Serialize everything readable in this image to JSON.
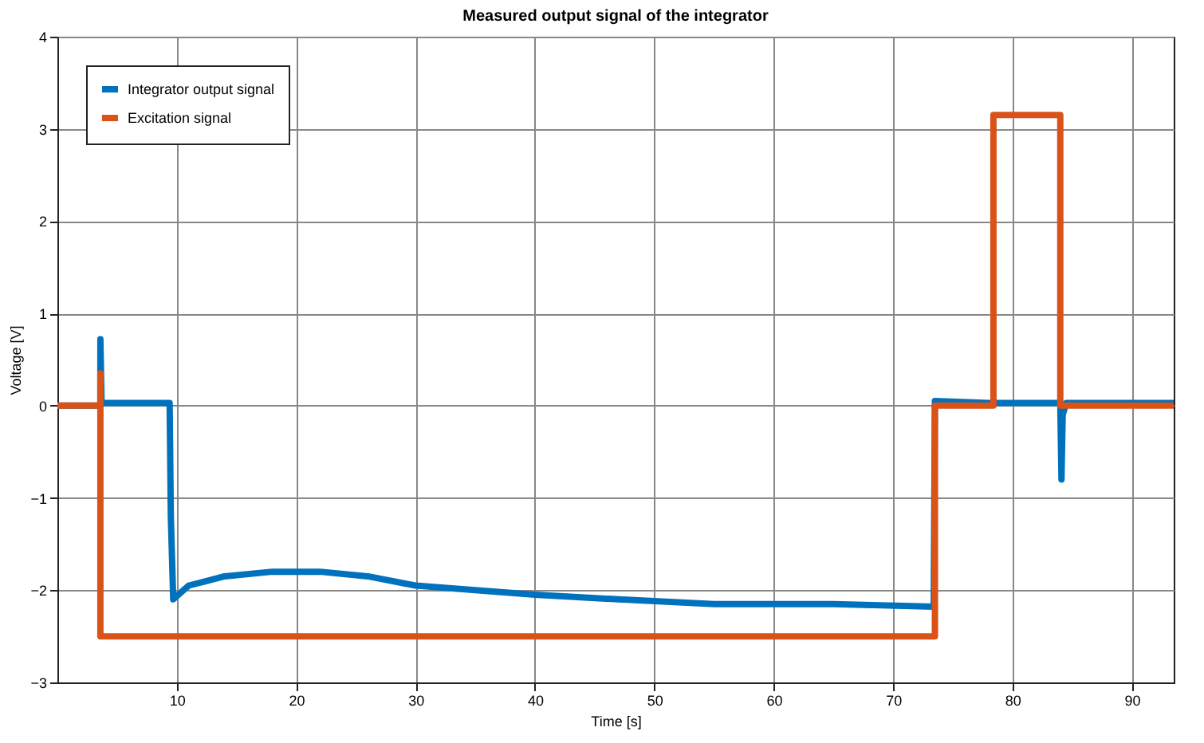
{
  "chart_data": {
    "type": "line",
    "title": "Measured output signal of the integrator",
    "xlabel": "Time [s]",
    "ylabel": "Voltage [V]",
    "xlim": [
      0,
      93.5
    ],
    "xticks": [
      10,
      20,
      30,
      40,
      50,
      60,
      70,
      80,
      90
    ],
    "ylim": [
      -3,
      4
    ],
    "yticks": [
      -3,
      -2,
      -1,
      0,
      1,
      2,
      3,
      4
    ],
    "grid": true,
    "legend": "top left",
    "line_style": "solid",
    "marker": "none",
    "series": [
      {
        "name": "Integrator output signal",
        "color": "#0072bd",
        "x": [
          0,
          3.6,
          3.6,
          3.7,
          9.4,
          9.5,
          9.7,
          11,
          14,
          18,
          22,
          26,
          30,
          35,
          40,
          47,
          55,
          65,
          73.4,
          73.5,
          78,
          84,
          84.1,
          84.2,
          84.5,
          93.5
        ],
        "values": [
          0,
          0,
          0.72,
          0.03,
          0.03,
          -1.2,
          -2.1,
          -1.95,
          -1.85,
          -1.8,
          -1.8,
          -1.85,
          -1.95,
          -2.0,
          -2.05,
          -2.1,
          -2.15,
          -2.15,
          -2.18,
          0.05,
          0.03,
          0.03,
          -0.8,
          -0.1,
          0.03,
          0.03
        ]
      },
      {
        "name": "Excitation signal",
        "color": "#d95319",
        "x": [
          0,
          3.6,
          3.6,
          3.6,
          73.5,
          73.5,
          78.4,
          78.4,
          84.0,
          84.0,
          93.5
        ],
        "values": [
          0,
          0,
          0.35,
          -2.5,
          -2.5,
          0,
          0,
          3.15,
          3.15,
          0,
          0
        ]
      }
    ]
  }
}
